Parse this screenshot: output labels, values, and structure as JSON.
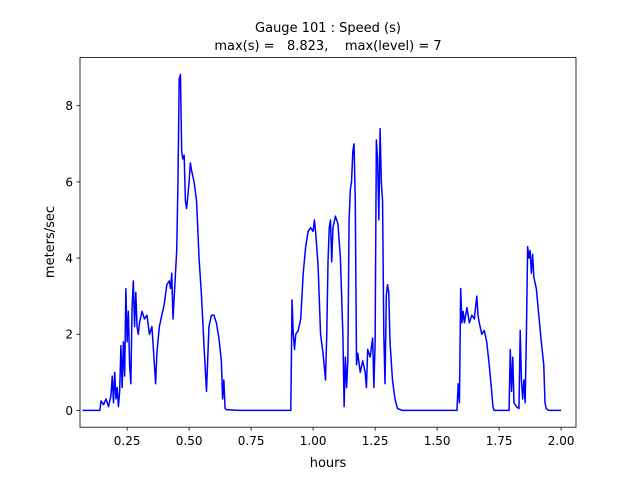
{
  "chart_data": {
    "type": "line",
    "title": [
      "Gauge 101 : Speed (s)",
      "max(s) =   8.823,    max(level) = 7"
    ],
    "xlabel": "hours",
    "ylabel": "meters/sec",
    "xlim": [
      0.06,
      2.06
    ],
    "ylim": [
      -0.441,
      9.264
    ],
    "xticks": [
      {
        "value": 0.25,
        "label": "0.25"
      },
      {
        "value": 0.5,
        "label": "0.50"
      },
      {
        "value": 0.75,
        "label": "0.75"
      },
      {
        "value": 1,
        "label": "1.00"
      },
      {
        "value": 1.25,
        "label": "1.25"
      },
      {
        "value": 1.5,
        "label": "1.50"
      },
      {
        "value": 1.75,
        "label": "1.75"
      },
      {
        "value": 2,
        "label": "2.00"
      }
    ],
    "yticks": [
      0,
      2,
      4,
      6,
      8
    ],
    "grid": false,
    "series": [
      {
        "color": "#0000ff",
        "x": [
          0.07,
          0.14,
          0.145,
          0.155,
          0.165,
          0.175,
          0.185,
          0.19,
          0.195,
          0.2,
          0.205,
          0.21,
          0.215,
          0.22,
          0.225,
          0.23,
          0.235,
          0.24,
          0.245,
          0.25,
          0.255,
          0.26,
          0.265,
          0.27,
          0.275,
          0.28,
          0.285,
          0.29,
          0.295,
          0.3,
          0.31,
          0.32,
          0.33,
          0.34,
          0.35,
          0.36,
          0.365,
          0.37,
          0.38,
          0.39,
          0.4,
          0.41,
          0.42,
          0.425,
          0.43,
          0.435,
          0.44,
          0.45,
          0.455,
          0.46,
          0.465,
          0.47,
          0.475,
          0.48,
          0.485,
          0.49,
          0.5,
          0.505,
          0.51,
          0.52,
          0.53,
          0.54,
          0.55,
          0.56,
          0.57,
          0.58,
          0.59,
          0.6,
          0.61,
          0.62,
          0.63,
          0.635,
          0.64,
          0.645,
          0.65,
          0.7,
          0.91,
          0.915,
          0.92,
          0.925,
          0.93,
          0.94,
          0.95,
          0.96,
          0.97,
          0.98,
          0.99,
          1.0,
          1.005,
          1.01,
          1.02,
          1.03,
          1.04,
          1.05,
          1.055,
          1.06,
          1.065,
          1.07,
          1.075,
          1.08,
          1.09,
          1.1,
          1.11,
          1.12,
          1.125,
          1.13,
          1.135,
          1.14,
          1.145,
          1.15,
          1.155,
          1.16,
          1.165,
          1.17,
          1.175,
          1.18,
          1.19,
          1.2,
          1.21,
          1.215,
          1.22,
          1.23,
          1.24,
          1.245,
          1.25,
          1.255,
          1.26,
          1.265,
          1.27,
          1.275,
          1.28,
          1.285,
          1.29,
          1.295,
          1.3,
          1.305,
          1.31,
          1.32,
          1.33,
          1.34,
          1.36,
          1.58,
          1.585,
          1.59,
          1.595,
          1.6,
          1.605,
          1.61,
          1.62,
          1.63,
          1.64,
          1.65,
          1.66,
          1.665,
          1.67,
          1.68,
          1.69,
          1.7,
          1.71,
          1.72,
          1.725,
          1.73,
          1.79,
          1.795,
          1.8,
          1.805,
          1.81,
          1.82,
          1.83,
          1.835,
          1.84,
          1.845,
          1.85,
          1.855,
          1.86,
          1.865,
          1.87,
          1.875,
          1.88,
          1.885,
          1.89,
          1.9,
          1.91,
          1.92,
          1.93,
          1.935,
          1.94,
          1.95,
          2.0
        ],
        "values": [
          0,
          0,
          0.25,
          0.15,
          0.3,
          0.1,
          0.4,
          0.9,
          0.2,
          1.0,
          0.3,
          0.6,
          0.1,
          0.5,
          1.7,
          0.6,
          1.8,
          0.9,
          3.2,
          1.8,
          2.6,
          1.2,
          0.7,
          2.7,
          3.4,
          2.2,
          3.1,
          2.2,
          2.0,
          2.3,
          2.6,
          2.4,
          2.5,
          2.0,
          2.2,
          1.2,
          0.7,
          1.5,
          2.2,
          2.5,
          2.8,
          3.3,
          3.4,
          3.2,
          3.6,
          2.4,
          3.0,
          4.2,
          6.0,
          8.7,
          8.823,
          6.8,
          6.6,
          6.7,
          5.5,
          5.3,
          6.0,
          6.5,
          6.3,
          6.0,
          5.5,
          4.0,
          3.0,
          1.7,
          0.5,
          2.2,
          2.5,
          2.5,
          2.3,
          1.9,
          1.3,
          0.3,
          0.8,
          0.05,
          0.02,
          0,
          0,
          2.9,
          2.0,
          1.6,
          2.0,
          2.1,
          2.4,
          3.6,
          4.3,
          4.7,
          4.8,
          4.7,
          5.0,
          4.7,
          3.8,
          2.0,
          1.5,
          0.8,
          2.0,
          3.9,
          4.8,
          5.0,
          3.9,
          4.8,
          5.1,
          4.9,
          4.0,
          2.0,
          0.1,
          1.4,
          0.6,
          1.3,
          5.0,
          5.8,
          6.0,
          6.8,
          7.0,
          5.5,
          1.2,
          1.5,
          1.0,
          1.3,
          1.0,
          0.6,
          1.6,
          1.4,
          1.9,
          0.6,
          1.8,
          7.1,
          6.6,
          5.0,
          7.4,
          6.0,
          5.5,
          2.0,
          0.7,
          3.0,
          3.3,
          3.1,
          1.8,
          0.8,
          0.3,
          0.05,
          0,
          0,
          0.7,
          0.2,
          3.2,
          2.3,
          2.6,
          2.3,
          2.7,
          2.3,
          2.5,
          2.4,
          3.0,
          2.5,
          2.3,
          2.0,
          2.1,
          1.8,
          1.2,
          0.5,
          0.1,
          0,
          0,
          1.6,
          0.5,
          1.4,
          0.2,
          0.1,
          0.05,
          2.1,
          0.8,
          0.3,
          0.8,
          0.2,
          2.0,
          4.3,
          4.0,
          4.2,
          3.6,
          4.1,
          3.5,
          3.2,
          2.5,
          1.8,
          1.2,
          0.2,
          0.05,
          0,
          0
        ]
      }
    ]
  }
}
